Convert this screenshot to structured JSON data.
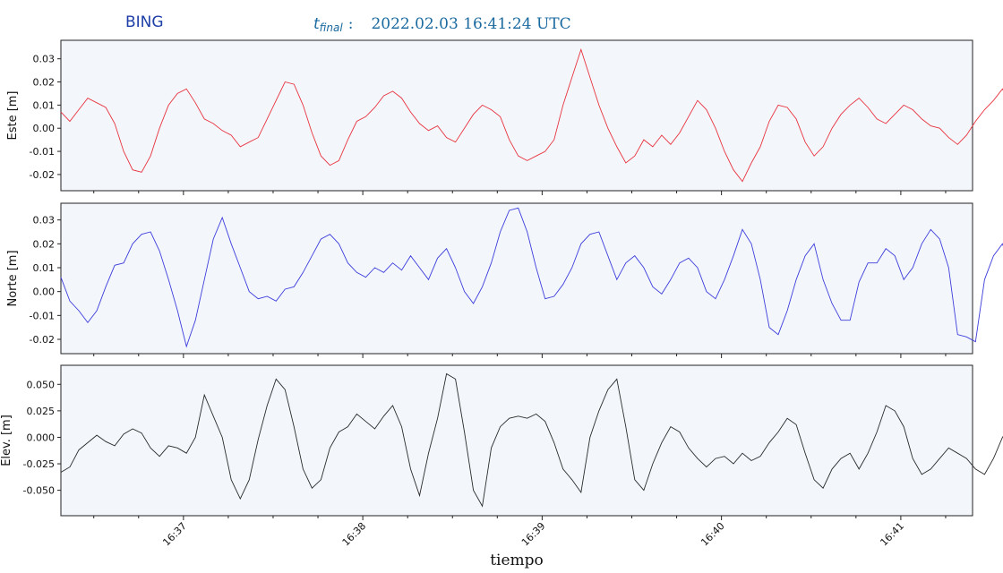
{
  "header": {
    "station": "BING",
    "tfinal_symbol": "t",
    "tfinal_sub": "final",
    "tfinal_colon": ":",
    "tfinal_value": "2022.02.03  16:41:24   UTC"
  },
  "xlabel": "tiempo",
  "chart_data": [
    {
      "type": "line",
      "ylabel": "Este [m]",
      "color": "#e8333f",
      "ylim": [
        -0.027,
        0.038
      ],
      "yticks": [
        "0.03",
        "0.02",
        "0.01",
        "0.00",
        "-0.01",
        "-0.02"
      ],
      "ytick_values": [
        0.03,
        0.02,
        0.01,
        0.0,
        -0.01,
        -0.02
      ],
      "xlim": [
        "16:36:19",
        "16:41:24"
      ],
      "xticks": [
        "16:37",
        "16:38",
        "16:39",
        "16:40",
        "16:41"
      ],
      "x_start": "16:36:19",
      "x_step_seconds": 3,
      "values": [
        0.007,
        0.003,
        0.008,
        0.013,
        0.011,
        0.009,
        0.002,
        -0.01,
        -0.018,
        -0.019,
        -0.012,
        0.0,
        0.01,
        0.015,
        0.017,
        0.011,
        0.004,
        0.002,
        -0.001,
        -0.003,
        -0.008,
        -0.006,
        -0.004,
        0.004,
        0.012,
        0.02,
        0.019,
        0.01,
        -0.002,
        -0.012,
        -0.016,
        -0.014,
        -0.005,
        0.003,
        0.005,
        0.009,
        0.014,
        0.016,
        0.013,
        0.007,
        0.002,
        -0.001,
        0.001,
        -0.004,
        -0.006,
        0.0,
        0.006,
        0.01,
        0.008,
        0.005,
        -0.005,
        -0.012,
        -0.014,
        -0.012,
        -0.01,
        -0.005,
        0.01,
        0.022,
        0.034,
        0.022,
        0.01,
        0.0,
        -0.008,
        -0.015,
        -0.012,
        -0.005,
        -0.008,
        -0.003,
        -0.007,
        -0.002,
        0.005,
        0.012,
        0.008,
        0.0,
        -0.01,
        -0.018,
        -0.023,
        -0.015,
        -0.008,
        0.003,
        0.01,
        0.009,
        0.004,
        -0.006,
        -0.012,
        -0.008,
        0.0,
        0.006,
        0.01,
        0.013,
        0.009,
        0.004,
        0.002,
        0.006,
        0.01,
        0.008,
        0.004,
        0.001,
        0.0,
        -0.004,
        -0.007,
        -0.003,
        0.003,
        0.008,
        0.012,
        0.017,
        0.01,
        0.0,
        -0.01,
        -0.017,
        -0.012,
        -0.003,
        0.005,
        0.013,
        0.018,
        0.014,
        0.006,
        -0.002,
        -0.014,
        -0.009,
        -0.004,
        0.006,
        0.014,
        0.015,
        0.011,
        0.003,
        -0.004,
        -0.008,
        -0.003,
        0.003,
        0.009,
        0.011,
        0.01,
        0.005,
        0.0,
        -0.01,
        -0.005,
        0.002,
        0.008,
        0.012,
        0.01,
        0.004,
        0.0,
        -0.004,
        -0.006,
        -0.002,
        0.004,
        0.008,
        0.011,
        0.006,
        0.002,
        0.009,
        0.013,
        0.008,
        0.0,
        -0.01,
        -0.014,
        -0.015,
        -0.008,
        0.005,
        0.017,
        0.021,
        0.012,
        0.005,
        0.008,
        0.006,
        0.003,
        -0.003,
        0.002,
        0.004,
        0.001,
        0.006,
        0.009,
        0.008,
        0.007,
        0.008,
        0.008,
        0.009,
        0.008,
        0.004,
        0.0,
        -0.008,
        -0.016,
        -0.019,
        -0.008,
        0.005,
        0.015,
        0.021,
        0.016,
        0.01,
        0.014,
        0.012,
        0.008,
        0.014,
        0.009
      ]
    },
    {
      "type": "line",
      "ylabel": "Norte [m]",
      "color": "#3d3ddb",
      "ylim": [
        -0.026,
        0.037
      ],
      "yticks": [
        "0.03",
        "0.02",
        "0.01",
        "0.00",
        "-0.01",
        "-0.02"
      ],
      "ytick_values": [
        0.03,
        0.02,
        0.01,
        0.0,
        -0.01,
        -0.02
      ],
      "xlim": [
        "16:36:19",
        "16:41:24"
      ],
      "xticks": [
        "16:37",
        "16:38",
        "16:39",
        "16:40",
        "16:41"
      ],
      "x_start": "16:36:19",
      "x_step_seconds": 3,
      "values": [
        0.006,
        -0.004,
        -0.008,
        -0.013,
        -0.008,
        0.002,
        0.011,
        0.012,
        0.02,
        0.024,
        0.025,
        0.017,
        0.005,
        -0.008,
        -0.023,
        -0.012,
        0.005,
        0.022,
        0.031,
        0.02,
        0.01,
        0.0,
        -0.003,
        -0.002,
        -0.004,
        0.001,
        0.002,
        0.008,
        0.015,
        0.022,
        0.024,
        0.02,
        0.012,
        0.008,
        0.006,
        0.01,
        0.008,
        0.012,
        0.009,
        0.015,
        0.01,
        0.005,
        0.014,
        0.018,
        0.01,
        0.0,
        -0.005,
        0.002,
        0.012,
        0.025,
        0.034,
        0.035,
        0.025,
        0.01,
        -0.003,
        -0.002,
        0.003,
        0.01,
        0.02,
        0.024,
        0.025,
        0.015,
        0.005,
        0.012,
        0.015,
        0.01,
        0.002,
        -0.001,
        0.005,
        0.012,
        0.014,
        0.01,
        0.0,
        -0.003,
        0.005,
        0.015,
        0.026,
        0.02,
        0.005,
        -0.015,
        -0.018,
        -0.008,
        0.005,
        0.015,
        0.02,
        0.005,
        -0.005,
        -0.012,
        -0.012,
        0.004,
        0.012,
        0.012,
        0.018,
        0.015,
        0.005,
        0.01,
        0.02,
        0.026,
        0.022,
        0.01,
        -0.018,
        -0.019,
        -0.021,
        0.005,
        0.015,
        0.02,
        0.01,
        -0.006,
        -0.004,
        0.004,
        0.006,
        0.004,
        0.002,
        0.004,
        0.008,
        0.008,
        0.004,
        -0.005,
        -0.006,
        0.002,
        0.006,
        0.01,
        0.017,
        0.018,
        0.01,
        0.002,
        0.004,
        0.003,
        0.0,
        0.002,
        0.004,
        0.002,
        0.004,
        0.002,
        0.004,
        0.006,
        0.006,
        0.003,
        0.008,
        0.004,
        0.002,
        0.006,
        0.014,
        0.013,
        0.012,
        0.003,
        -0.002,
        0.004,
        0.006,
        0.003,
        0.008,
        0.001,
        -0.011,
        0.0,
        0.008,
        0.012,
        0.005,
        0.006,
        0.01,
        0.018,
        0.015,
        0.004,
        -0.007,
        -0.005,
        0.01,
        0.015,
        0.018,
        0.01,
        0.002,
        -0.005,
        -0.018,
        -0.012,
        0.005,
        0.012,
        0.025,
        0.028,
        0.019,
        0.008,
        0.007,
        0.008,
        0.011
      ]
    },
    {
      "type": "line",
      "ylabel": "Elev. [m]",
      "color": "#2a2a2a",
      "ylim": [
        -0.074,
        0.068
      ],
      "yticks": [
        "0.050",
        "0.025",
        "0.000",
        "-0.025",
        "-0.050"
      ],
      "ytick_values": [
        0.05,
        0.025,
        0.0,
        -0.025,
        -0.05
      ],
      "xlim": [
        "16:36:19",
        "16:41:24"
      ],
      "xticks": [
        "16:37",
        "16:38",
        "16:39",
        "16:40",
        "16:41"
      ],
      "x_start": "16:36:19",
      "x_step_seconds": 3,
      "values": [
        -0.033,
        -0.028,
        -0.012,
        -0.005,
        0.002,
        -0.004,
        -0.008,
        0.003,
        0.008,
        0.004,
        -0.01,
        -0.018,
        -0.008,
        -0.01,
        -0.015,
        0.0,
        0.04,
        0.02,
        0.0,
        -0.04,
        -0.058,
        -0.04,
        -0.002,
        0.03,
        0.055,
        0.045,
        0.01,
        -0.03,
        -0.048,
        -0.04,
        -0.01,
        0.005,
        0.01,
        0.022,
        0.015,
        0.008,
        0.02,
        0.03,
        0.01,
        -0.03,
        -0.055,
        -0.015,
        0.018,
        0.06,
        0.055,
        0.005,
        -0.05,
        -0.065,
        -0.01,
        0.01,
        0.018,
        0.02,
        0.018,
        0.022,
        0.015,
        -0.005,
        -0.03,
        -0.04,
        -0.052,
        0.0,
        0.025,
        0.045,
        0.055,
        0.01,
        -0.04,
        -0.05,
        -0.025,
        -0.005,
        0.01,
        0.005,
        -0.01,
        -0.02,
        -0.028,
        -0.02,
        -0.018,
        -0.025,
        -0.015,
        -0.022,
        -0.018,
        -0.005,
        0.005,
        0.018,
        0.012,
        -0.015,
        -0.04,
        -0.048,
        -0.03,
        -0.02,
        -0.015,
        -0.03,
        -0.015,
        0.005,
        0.03,
        0.025,
        0.01,
        -0.02,
        -0.035,
        -0.03,
        -0.02,
        -0.01,
        -0.015,
        -0.02,
        -0.03,
        -0.035,
        -0.02,
        0.0,
        0.012,
        0.002,
        -0.015,
        -0.03,
        -0.028,
        -0.015,
        -0.005,
        0.012,
        0.0,
        -0.03,
        -0.045,
        -0.035,
        -0.015,
        0.005,
        0.025,
        0.018,
        -0.005,
        -0.03,
        -0.038,
        -0.022,
        -0.015,
        -0.008,
        0.01,
        0.005,
        -0.018,
        -0.035,
        -0.045,
        -0.032,
        -0.01,
        0.01,
        0.018,
        0.008,
        -0.01,
        -0.03,
        -0.04,
        -0.04,
        -0.015,
        0.005,
        0.025,
        0.02,
        0.005,
        -0.03,
        -0.045,
        -0.035,
        -0.015,
        0.005,
        0.035,
        0.01,
        -0.01,
        -0.03,
        -0.045,
        -0.035,
        -0.01,
        0.0,
        -0.002,
        0.008,
        0.015,
        0.02,
        0.005,
        -0.01,
        -0.025,
        -0.015,
        -0.002,
        -0.005,
        0.008,
        0.002,
        -0.01,
        -0.015,
        -0.022,
        -0.015,
        -0.02,
        -0.015,
        -0.005,
        0.005,
        -0.01,
        -0.032,
        -0.028,
        -0.038
      ]
    }
  ]
}
